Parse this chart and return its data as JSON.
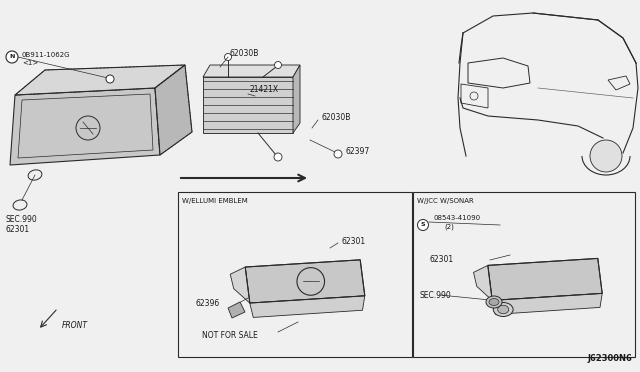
{
  "background_color": "#f0f0f0",
  "line_color": "#2a2a2a",
  "text_color": "#1a1a1a",
  "border_color": "#333333",
  "diagram_id": "J62300N6",
  "labels": {
    "part_main_grille": "62301",
    "part_bracket": "62030B",
    "part_seal": "21421X",
    "part_clip": "62397",
    "part_nut": "0B911-1062G",
    "part_nut2": "<1>",
    "part_sec990": "SEC.990",
    "part_62396": "62396",
    "part_not_for_sale": "NOT FOR SALE",
    "part_sonar_bolt": "08543-41090",
    "part_sonar_bolt2": "(2)",
    "section_ellumi": "W/ELLUMI EMBLEM",
    "section_sonar": "W/JCC W/SONAR",
    "front_arrow": "FRONT"
  },
  "figsize": [
    6.4,
    3.72
  ],
  "dpi": 100
}
